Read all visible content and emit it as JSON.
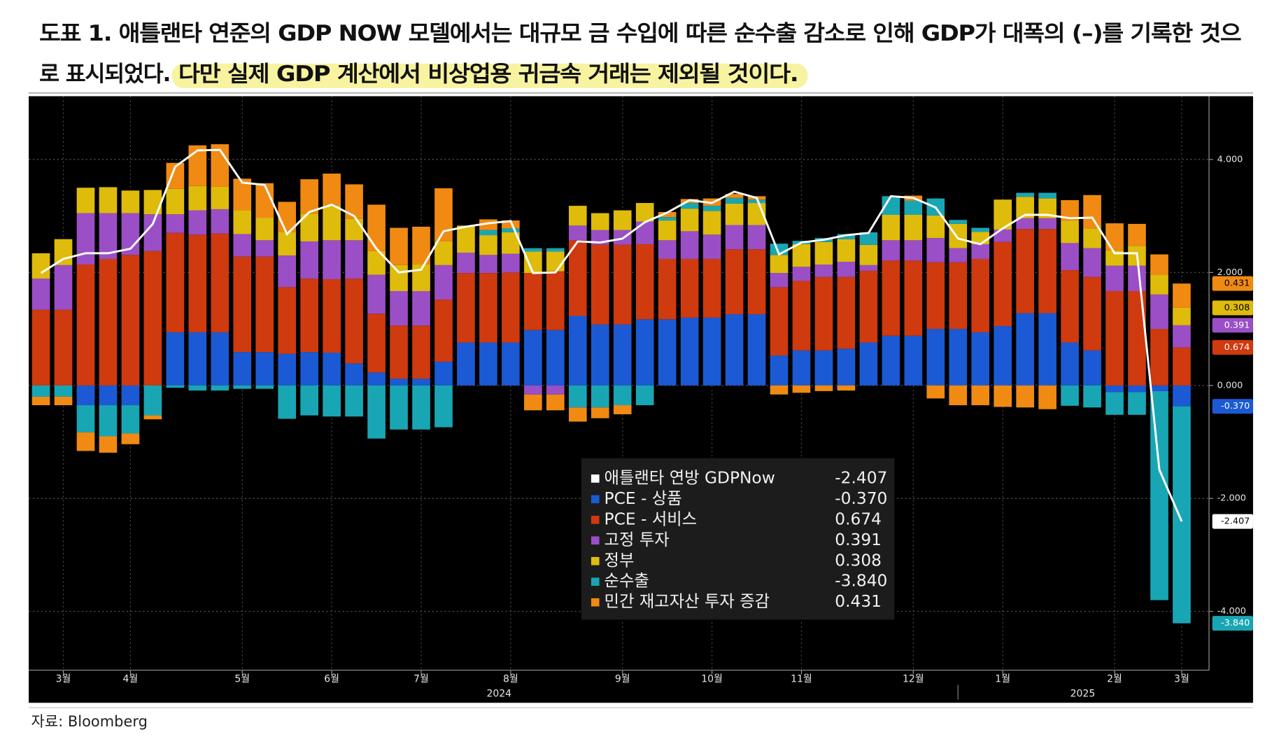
{
  "chart_data": {
    "type": "bar",
    "stacked": true,
    "title_lines": [
      "도표 1. 애틀랜타 연준의 GDP NOW 모델에서는 대규모 금 수입에 따른 순수출 감소로 인해 GDP가 대폭의 (–)를 기록한 것으",
      "로 표시되었다."
    ],
    "highlight": "다만 실제 GDP 계산에서 비상업용 귀금속 거래는 제외될 것이다.",
    "source": "자료: Bloomberg",
    "categories": [
      null,
      "3월",
      null,
      null,
      "4월",
      null,
      null,
      null,
      null,
      "5월",
      null,
      null,
      null,
      "6월",
      null,
      null,
      null,
      "7월",
      null,
      null,
      null,
      "8월",
      null,
      null,
      null,
      null,
      "9월",
      null,
      null,
      null,
      "10월",
      null,
      null,
      null,
      "11월",
      null,
      null,
      null,
      null,
      "12월",
      null,
      null,
      null,
      "1월",
      null,
      null,
      null,
      null,
      "2월",
      null,
      null,
      "3월"
    ],
    "x_group_labels": [
      "2024",
      "2025"
    ],
    "ylim": [
      -5.04,
      5.12
    ],
    "yticks": [
      {
        "value": -4,
        "label": "-4.000"
      },
      {
        "value": -2,
        "label": "-2.000"
      },
      {
        "value": 0,
        "label": "0.000"
      },
      {
        "value": 2,
        "label": "2.000"
      },
      {
        "value": 4,
        "label": "4.000"
      }
    ],
    "grid": true,
    "series": [
      {
        "name": "애틀랜타 연방 GDPNow",
        "type": "line",
        "color": "#ffffff",
        "value_label": "-2.407",
        "values": [
          1.99,
          2.24,
          2.34,
          2.34,
          2.42,
          2.86,
          3.87,
          4.16,
          4.17,
          3.59,
          3.55,
          2.68,
          3.07,
          3.2,
          3.0,
          2.42,
          2.0,
          2.05,
          2.73,
          2.81,
          2.87,
          2.91,
          1.99,
          2.0,
          2.55,
          2.53,
          2.6,
          2.89,
          3.06,
          3.28,
          3.23,
          3.43,
          3.32,
          2.32,
          2.53,
          2.58,
          2.66,
          2.7,
          3.35,
          3.32,
          3.15,
          2.6,
          2.5,
          2.78,
          3.02,
          3.02,
          2.96,
          2.97,
          2.34,
          2.34,
          -1.49,
          -2.407
        ]
      },
      {
        "name": "PCE - 상품",
        "type": "bar",
        "color": "#1b5ad4",
        "value_label": "-0.370",
        "values": [
          0,
          0,
          -0.35,
          -0.35,
          -0.35,
          0,
          0.94,
          0.94,
          0.94,
          0.59,
          0.59,
          0.56,
          0.59,
          0.58,
          0.39,
          0.23,
          0.12,
          0.12,
          0.42,
          0.76,
          0.76,
          0.76,
          0.98,
          0.98,
          1.23,
          1.08,
          1.08,
          1.17,
          1.17,
          1.2,
          1.2,
          1.26,
          1.26,
          0.53,
          0.62,
          0.62,
          0.65,
          0.76,
          0.88,
          0.88,
          1.0,
          1.0,
          0.94,
          1.05,
          1.28,
          1.28,
          0.76,
          0.62,
          -0.12,
          -0.12,
          -0.1,
          -0.37
        ]
      },
      {
        "name": "PCE - 서비스",
        "type": "bar",
        "color": "#cf3a0e",
        "value_label": "0.674",
        "values": [
          1.34,
          1.34,
          2.14,
          2.24,
          2.31,
          2.38,
          1.76,
          1.73,
          1.75,
          1.69,
          1.69,
          1.18,
          1.3,
          1.3,
          1.5,
          1.04,
          0.94,
          0.94,
          1.1,
          1.23,
          1.23,
          1.24,
          1.01,
          1.04,
          1.34,
          1.41,
          1.41,
          1.33,
          1.07,
          1.04,
          1.04,
          1.15,
          1.15,
          1.21,
          1.23,
          1.3,
          1.27,
          1.27,
          1.33,
          1.33,
          1.18,
          1.18,
          1.3,
          1.49,
          1.49,
          1.49,
          1.28,
          1.3,
          1.67,
          1.67,
          1.0,
          0.674
        ]
      },
      {
        "name": "고정 투자",
        "type": "bar",
        "color": "#9a4fc6",
        "value_label": "0.391",
        "values": [
          0.55,
          0.79,
          0.91,
          0.81,
          0.74,
          0.65,
          0.33,
          0.43,
          0.43,
          0.4,
          0.29,
          0.56,
          0.66,
          0.69,
          0.68,
          0.69,
          0.61,
          0.61,
          0.61,
          0.36,
          0.32,
          0.33,
          -0.16,
          -0.16,
          0.26,
          0.26,
          0.26,
          0.4,
          0.33,
          0.49,
          0.43,
          0.43,
          0.43,
          0.25,
          0.25,
          0.22,
          0.27,
          0.1,
          0.36,
          0.36,
          0.43,
          0.25,
          0.26,
          0.22,
          0.19,
          0.19,
          0.48,
          0.51,
          0.45,
          0.45,
          0.61,
          0.391
        ]
      },
      {
        "name": "정부",
        "type": "bar",
        "color": "#dfbb0c",
        "value_label": "0.308",
        "values": [
          0.45,
          0.46,
          0.45,
          0.46,
          0.4,
          0.43,
          0.45,
          0.43,
          0.4,
          0.42,
          0.4,
          0.42,
          0.49,
          0.62,
          0.38,
          0.42,
          0.46,
          0.48,
          0.42,
          0.48,
          0.35,
          0.38,
          0.38,
          0.35,
          0.35,
          0.3,
          0.35,
          0.33,
          0.35,
          0.4,
          0.42,
          0.38,
          0.39,
          0.32,
          0.4,
          0.4,
          0.4,
          0.36,
          0.45,
          0.45,
          0.4,
          0.43,
          0.22,
          0.53,
          0.38,
          0.35,
          0.4,
          0.35,
          0.27,
          0.35,
          0.35,
          0.308
        ]
      },
      {
        "name": "순수출",
        "type": "bar",
        "color": "#19a6b4",
        "value_label": "-3.840",
        "values": [
          -0.2,
          -0.2,
          -0.48,
          -0.55,
          -0.5,
          -0.53,
          -0.04,
          -0.09,
          -0.09,
          -0.06,
          -0.06,
          -0.59,
          -0.53,
          -0.55,
          -0.55,
          -0.94,
          -0.78,
          -0.78,
          -0.74,
          0,
          0.09,
          0.07,
          0.06,
          0.06,
          -0.39,
          -0.39,
          -0.35,
          -0.35,
          0.06,
          0.1,
          0.09,
          0.1,
          0.06,
          0.2,
          0.06,
          0.07,
          0.09,
          0.22,
          0.33,
          0.25,
          0.3,
          0.07,
          0.07,
          0,
          0.07,
          0.1,
          -0.36,
          -0.39,
          -0.4,
          -0.4,
          -3.7,
          -3.84
        ]
      },
      {
        "name": "민간 재고자산 투자 증감",
        "type": "bar",
        "color": "#f08a12",
        "value_label": "0.431",
        "values": [
          -0.15,
          -0.15,
          -0.33,
          -0.29,
          -0.19,
          -0.07,
          0.46,
          0.72,
          0.75,
          0.56,
          0.61,
          0.53,
          0.61,
          0.56,
          0.61,
          0.82,
          0.66,
          0.66,
          0.94,
          0,
          0.19,
          0.14,
          -0.28,
          -0.28,
          -0.25,
          -0.19,
          -0.16,
          0,
          0.09,
          0.07,
          0.13,
          0.07,
          0.06,
          -0.16,
          -0.13,
          -0.1,
          -0.09,
          0,
          0,
          0.09,
          -0.23,
          -0.35,
          -0.35,
          -0.38,
          -0.39,
          -0.42,
          0.36,
          0.59,
          0.48,
          0.39,
          0.36,
          0.431
        ]
      }
    ]
  }
}
